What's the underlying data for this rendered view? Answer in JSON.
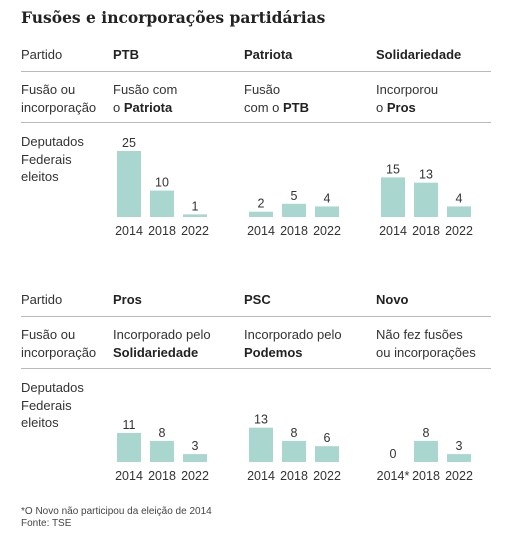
{
  "title": "Fusões e incorporações partidárias",
  "row_labels": {
    "partido": "Partido",
    "fusao": [
      "Fusão ou",
      "incorporação"
    ],
    "deputados": [
      "Deputados",
      "Federais",
      "eleitos"
    ]
  },
  "bar_color": "#a9d7cf",
  "chart_data": [
    {
      "type": "bar",
      "party": "PTB",
      "action": [
        "Fusão com",
        "o "
      ],
      "action_target": "Patriota",
      "categories": [
        "2014",
        "2018",
        "2022"
      ],
      "values": [
        25,
        10,
        1
      ]
    },
    {
      "type": "bar",
      "party": "Patriota",
      "action": [
        "Fusão",
        "com o "
      ],
      "action_target": "PTB",
      "categories": [
        "2014",
        "2018",
        "2022"
      ],
      "values": [
        2,
        5,
        4
      ]
    },
    {
      "type": "bar",
      "party": "Solidariedade",
      "action": [
        "Incorporou",
        "o "
      ],
      "action_target": "Pros",
      "categories": [
        "2014",
        "2018",
        "2022"
      ],
      "values": [
        15,
        13,
        4
      ]
    },
    {
      "type": "bar",
      "party": "Pros",
      "action": [
        "Incorporado pelo",
        ""
      ],
      "action_target": "Solidariedade",
      "categories": [
        "2014",
        "2018",
        "2022"
      ],
      "values": [
        11,
        8,
        3
      ]
    },
    {
      "type": "bar",
      "party": "PSC",
      "action": [
        "Incorporado pelo",
        ""
      ],
      "action_target": "Podemos",
      "categories": [
        "2014",
        "2018",
        "2022"
      ],
      "values": [
        13,
        8,
        6
      ]
    },
    {
      "type": "bar",
      "party": "Novo",
      "action": [
        "Não fez fusões",
        "ou incorporações"
      ],
      "action_target": "",
      "categories": [
        "2014*",
        "2018",
        "2022"
      ],
      "values": [
        0,
        8,
        3
      ]
    }
  ],
  "footnote": "*O Novo não participou da eleição de 2014",
  "source": "Fonte: TSE"
}
